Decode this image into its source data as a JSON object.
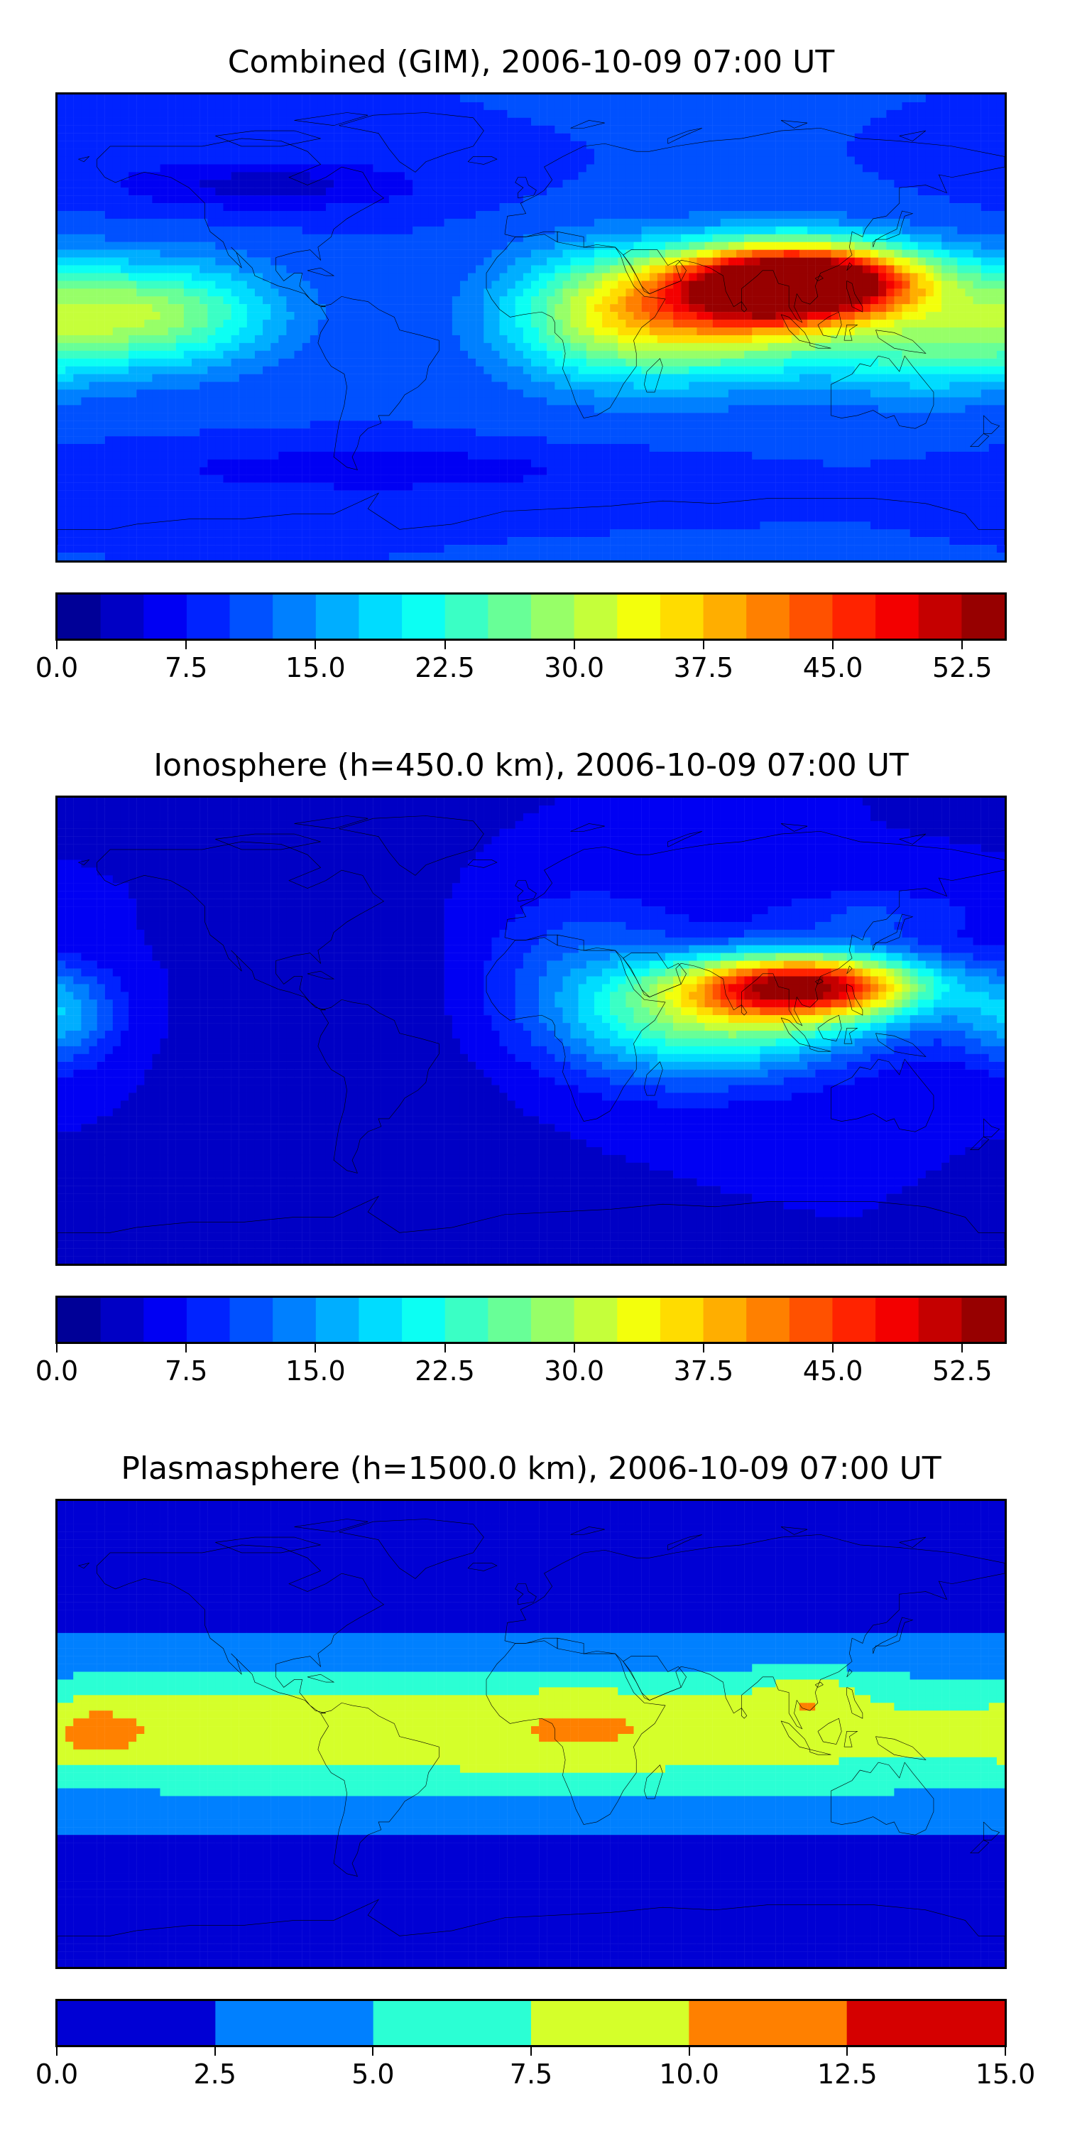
{
  "panels": [
    {
      "title": "Combined (GIM), 2006-10-09 07:00 UT",
      "colorbar": {
        "min": 0.0,
        "max": 55.0,
        "levels": 22,
        "tick_labels": [
          "0.0",
          "7.5",
          "15.0",
          "22.5",
          "30.0",
          "37.5",
          "45.0",
          "52.5"
        ],
        "tick_values": [
          0.0,
          7.5,
          15.0,
          22.5,
          30.0,
          37.5,
          45.0,
          52.5
        ]
      },
      "field": {
        "background": 10,
        "blobs": [
          {
            "lon": 105,
            "lat": 18,
            "rlon": 45,
            "rlat": 14,
            "amp": 44
          },
          {
            "lon": 80,
            "lat": 12,
            "rlon": 60,
            "rlat": 20,
            "amp": 20
          },
          {
            "lon": 60,
            "lat": -2,
            "rlon": 55,
            "rlat": 22,
            "amp": 14
          },
          {
            "lon": -170,
            "lat": 5,
            "rlon": 40,
            "rlat": 20,
            "amp": 14
          },
          {
            "lon": -130,
            "lat": 5,
            "rlon": 40,
            "rlat": 20,
            "amp": 12
          },
          {
            "lon": 150,
            "lat": -10,
            "rlon": 40,
            "rlat": 18,
            "amp": 10
          },
          {
            "lon": 20,
            "lat": 5,
            "rlon": 35,
            "rlat": 25,
            "amp": 8
          },
          {
            "lon": -100,
            "lat": 55,
            "rlon": 60,
            "rlat": 10,
            "amp": -6
          },
          {
            "lon": -60,
            "lat": -55,
            "rlon": 80,
            "rlat": 8,
            "amp": -5
          }
        ]
      }
    },
    {
      "title": "Ionosphere  (h=450.0 km), 2006-10-09 07:00 UT",
      "colorbar": {
        "min": 0.0,
        "max": 55.0,
        "levels": 22,
        "tick_labels": [
          "0.0",
          "7.5",
          "15.0",
          "22.5",
          "30.0",
          "37.5",
          "45.0",
          "52.5"
        ],
        "tick_values": [
          0.0,
          7.5,
          15.0,
          22.5,
          30.0,
          37.5,
          45.0,
          52.5
        ]
      },
      "field": {
        "background": 5,
        "blobs": [
          {
            "lon": 105,
            "lat": 18,
            "rlon": 45,
            "rlat": 12,
            "amp": 36
          },
          {
            "lon": 85,
            "lat": 10,
            "rlon": 65,
            "rlat": 18,
            "amp": 18
          },
          {
            "lon": 60,
            "lat": -5,
            "rlon": 55,
            "rlat": 20,
            "amp": 10
          },
          {
            "lon": -178,
            "lat": 5,
            "rlon": 20,
            "rlat": 18,
            "amp": 10
          },
          {
            "lon": 20,
            "lat": 30,
            "rlon": 40,
            "rlat": 25,
            "amp": 6
          },
          {
            "lon": 130,
            "lat": 45,
            "rlon": 40,
            "rlat": 10,
            "amp": 5
          },
          {
            "lon": -60,
            "lat": 0,
            "rlon": 60,
            "rlat": 50,
            "amp": -2
          }
        ]
      }
    },
    {
      "title": "Plasmasphere (h=1500.0 km), 2006-10-09 07:00 UT",
      "colorbar": {
        "min": 0.0,
        "max": 15.0,
        "levels": 6,
        "tick_labels": [
          "0.0",
          "2.5",
          "5.0",
          "7.5",
          "10.0",
          "12.5",
          "15.0"
        ],
        "tick_values": [
          0.0,
          2.5,
          5.0,
          7.5,
          10.0,
          12.5,
          15.0
        ]
      },
      "field": {
        "background": 1.5,
        "blobs": [
          {
            "lon": 0,
            "lat": 0,
            "rlon": 400,
            "rlat": 28,
            "amp": 7.5
          },
          {
            "lon": -165,
            "lat": 0,
            "rlon": 18,
            "rlat": 12,
            "amp": 3.2
          },
          {
            "lon": 105,
            "lat": 15,
            "rlon": 20,
            "rlat": 10,
            "amp": 3.0
          },
          {
            "lon": 20,
            "lat": 5,
            "rlon": 35,
            "rlat": 15,
            "amp": 1.5
          },
          {
            "lon": -110,
            "lat": 8,
            "rlon": 60,
            "rlat": 15,
            "amp": 1.2
          },
          {
            "lon": 0,
            "lat": -55,
            "rlon": 400,
            "rlat": 6,
            "amp": -1.2
          }
        ]
      }
    }
  ]
}
